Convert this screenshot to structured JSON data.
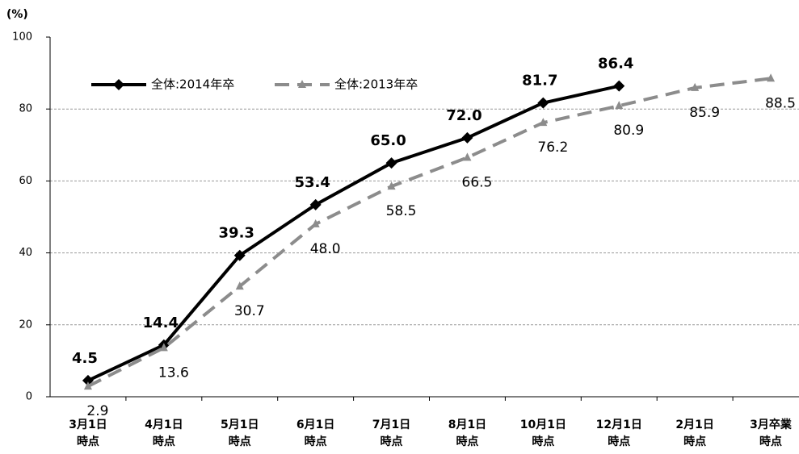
{
  "chart_data": {
    "type": "line",
    "y_unit_label": "(%)",
    "categories": [
      [
        "3月1日",
        "時点"
      ],
      [
        "4月1日",
        "時点"
      ],
      [
        "5月1日",
        "時点"
      ],
      [
        "6月1日",
        "時点"
      ],
      [
        "7月1日",
        "時点"
      ],
      [
        "8月1日",
        "時点"
      ],
      [
        "10月1日",
        "時点"
      ],
      [
        "12月1日",
        "時点"
      ],
      [
        "2月1日",
        "時点"
      ],
      [
        "3月卒業",
        "時点"
      ]
    ],
    "series": [
      {
        "name": "全体:2014年卒",
        "color": "#000000",
        "marker": "diamond",
        "dashed": false,
        "values": [
          4.5,
          14.4,
          39.3,
          53.4,
          65.0,
          72.0,
          81.7,
          86.4,
          null,
          null
        ],
        "value_labels": [
          "4.5",
          "14.4",
          "39.3",
          "53.4",
          "65.0",
          "72.0",
          "81.7",
          "86.4",
          null,
          null
        ]
      },
      {
        "name": "全体:2013年卒",
        "color": "#8c8c8c",
        "marker": "triangle",
        "dashed": true,
        "values": [
          2.9,
          13.6,
          30.7,
          48.0,
          58.5,
          66.5,
          76.2,
          80.9,
          85.9,
          88.5
        ],
        "value_labels": [
          "2.9",
          "13.6",
          "30.7",
          "48.0",
          "58.5",
          "66.5",
          "76.2",
          "80.9",
          "85.9",
          "88.5"
        ]
      }
    ],
    "ylim": [
      0,
      100
    ],
    "yticks": [
      0,
      20,
      40,
      60,
      80,
      100
    ],
    "grid": true,
    "legend": "upper left"
  }
}
